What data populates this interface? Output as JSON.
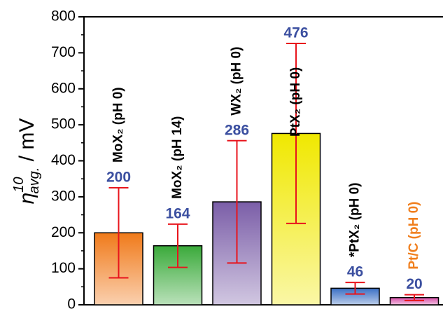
{
  "chart_data": {
    "type": "bar",
    "ylabel": {
      "symbol": "η",
      "superscript": "10",
      "subscript": "avg.",
      "unit": " / mV"
    },
    "categories": [
      "MoX₂ (pH 0)",
      "MoX₂ (pH 14)",
      "WX₂ (pH 0)",
      "PtX₂ (pH 0)",
      "*PtX₂ (pH 0)",
      "Pt/C (pH 0)"
    ],
    "category_label_colors": [
      "#000000",
      "#000000",
      "#000000",
      "#000000",
      "#000000",
      "#f07f1e"
    ],
    "values": [
      200,
      164,
      286,
      476,
      46,
      20
    ],
    "errors": [
      125,
      60,
      170,
      250,
      16,
      8
    ],
    "colors": [
      "#f07a1a",
      "#3aaa3a",
      "#7b5ea8",
      "#f0e800",
      "#3a6fc4",
      "#d84fa8"
    ],
    "value_label_color": "#3b4fa0",
    "error_color": "#e8141c",
    "ylim": [
      0,
      800
    ],
    "yticks": [
      0,
      100,
      200,
      300,
      400,
      500,
      600,
      700,
      800
    ],
    "minor_yticks": [
      50,
      150,
      250,
      350,
      450,
      550,
      650,
      750
    ]
  }
}
